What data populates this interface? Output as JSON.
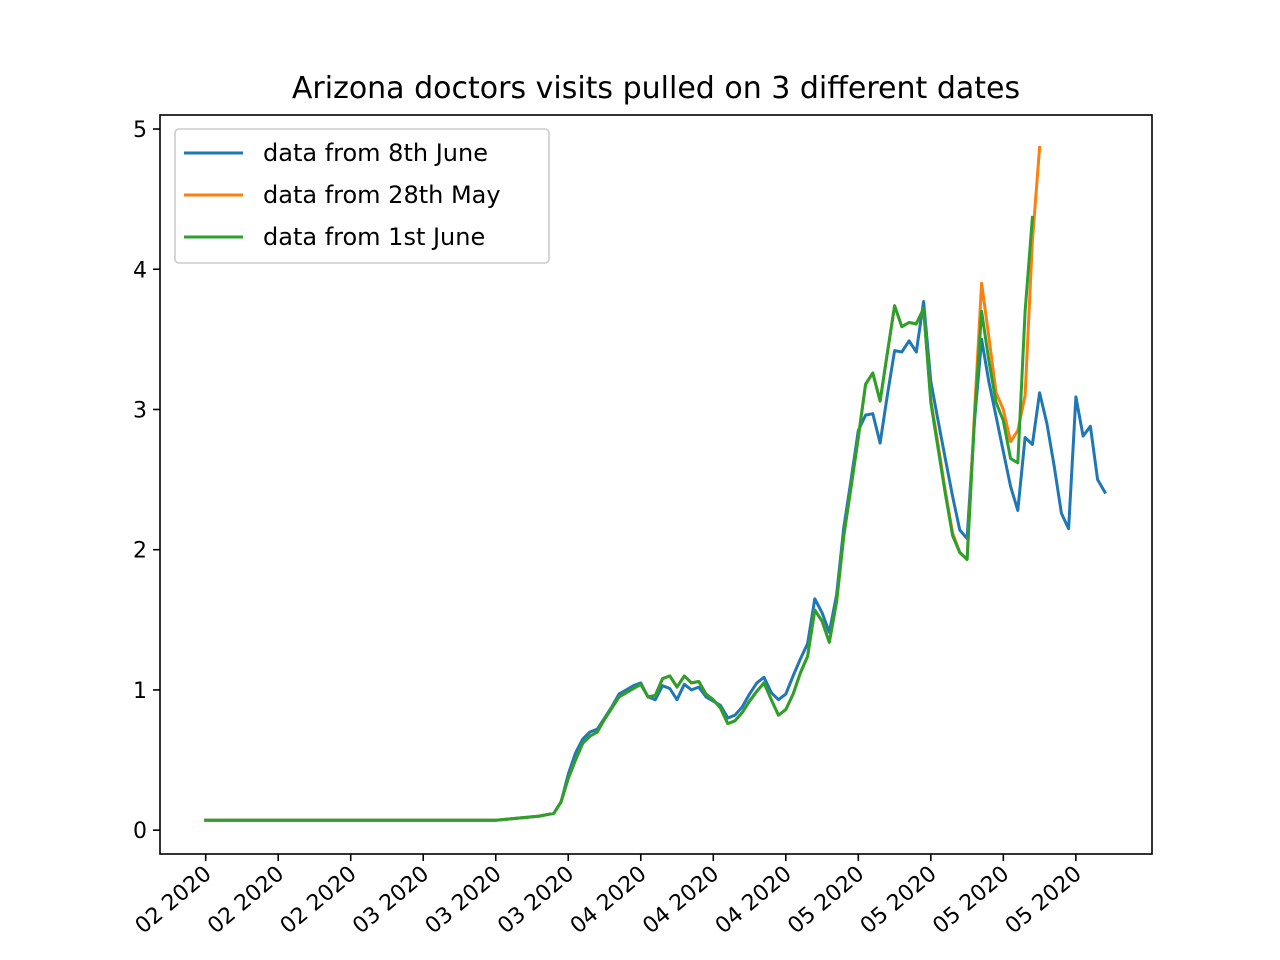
{
  "chart_data": {
    "type": "line",
    "title": "Arizona doctors visits pulled on 3 different dates",
    "xlabel": "",
    "ylabel": "",
    "ylim": [
      -0.17,
      5.1
    ],
    "yticks": [
      0,
      1,
      2,
      3,
      4,
      5
    ],
    "ytick_labels": [
      "0",
      "1",
      "2",
      "3",
      "4",
      "5"
    ],
    "xlim": [
      -6.3,
      130.5
    ],
    "xticks": [
      0,
      10,
      20,
      30,
      40,
      50,
      60,
      70,
      80,
      90,
      100,
      110,
      120
    ],
    "xtick_labels": [
      "02 2020",
      "02 2020",
      "02 2020",
      "03 2020",
      "03 2020",
      "03 2020",
      "04 2020",
      "04 2020",
      "04 2020",
      "05 2020",
      "05 2020",
      "05 2020",
      "05 2020"
    ],
    "xtick_rotation": 40,
    "legend_position": "upper left",
    "series": [
      {
        "name": "data from 8th June",
        "color": "#1f77b4",
        "x": [
          0,
          5,
          10,
          15,
          20,
          25,
          30,
          35,
          40,
          42,
          44,
          46,
          48,
          49,
          50,
          51,
          52,
          53,
          54,
          55,
          56,
          57,
          58,
          59,
          60,
          61,
          62,
          63,
          64,
          65,
          66,
          67,
          68,
          69,
          70,
          71,
          72,
          73,
          74,
          75,
          76,
          77,
          78,
          79,
          80,
          81,
          82,
          83,
          84,
          85,
          86,
          87,
          88,
          89,
          90,
          91,
          92,
          93,
          94,
          95,
          96,
          97,
          98,
          99,
          100,
          101,
          102,
          103,
          104,
          105,
          106,
          107,
          108,
          109,
          110,
          111,
          112,
          113,
          114,
          115,
          116,
          117,
          118,
          119,
          120,
          121,
          122,
          123,
          124
        ],
        "y": [
          0.07,
          0.07,
          0.07,
          0.07,
          0.07,
          0.07,
          0.07,
          0.07,
          0.07,
          0.08,
          0.09,
          0.1,
          0.12,
          0.2,
          0.4,
          0.55,
          0.65,
          0.7,
          0.72,
          0.8,
          0.88,
          0.97,
          1.0,
          1.03,
          1.05,
          0.95,
          0.93,
          1.03,
          1.01,
          0.93,
          1.04,
          1.0,
          1.02,
          0.95,
          0.92,
          0.89,
          0.8,
          0.82,
          0.88,
          0.97,
          1.05,
          1.09,
          0.98,
          0.93,
          0.97,
          1.1,
          1.22,
          1.33,
          1.65,
          1.55,
          1.41,
          1.68,
          2.16,
          2.5,
          2.85,
          2.96,
          2.97,
          2.76,
          3.1,
          3.42,
          3.41,
          3.49,
          3.41,
          3.77,
          3.2,
          2.92,
          2.65,
          2.38,
          2.14,
          2.08,
          2.9,
          3.5,
          3.2,
          2.95,
          2.7,
          2.45,
          2.28,
          2.8,
          2.75,
          3.12,
          2.9,
          2.6,
          2.26,
          2.15,
          3.09,
          2.81,
          2.88,
          2.5,
          2.41
        ]
      },
      {
        "name": "data from 28th May",
        "color": "#ff7f0e",
        "x": [
          0,
          5,
          10,
          15,
          20,
          25,
          30,
          35,
          40,
          42,
          44,
          46,
          48,
          49,
          50,
          51,
          52,
          53,
          54,
          55,
          56,
          57,
          58,
          59,
          60,
          61,
          62,
          63,
          64,
          65,
          66,
          67,
          68,
          69,
          70,
          71,
          72,
          73,
          74,
          75,
          76,
          77,
          78,
          79,
          80,
          81,
          82,
          83,
          84,
          85,
          86,
          87,
          88,
          89,
          90,
          91,
          92,
          93,
          94,
          95,
          96,
          97,
          98,
          99,
          100,
          101,
          102,
          103,
          104,
          105,
          106,
          107,
          108,
          109,
          110,
          111,
          112,
          113,
          114,
          115
        ],
        "y": [
          0.07,
          0.07,
          0.07,
          0.07,
          0.07,
          0.07,
          0.07,
          0.07,
          0.07,
          0.08,
          0.09,
          0.1,
          0.12,
          0.2,
          0.37,
          0.5,
          0.62,
          0.67,
          0.7,
          0.79,
          0.87,
          0.95,
          0.98,
          1.01,
          1.04,
          0.95,
          0.96,
          1.08,
          1.1,
          1.02,
          1.1,
          1.05,
          1.06,
          0.97,
          0.93,
          0.87,
          0.76,
          0.78,
          0.84,
          0.92,
          0.99,
          1.05,
          0.93,
          0.82,
          0.86,
          0.97,
          1.12,
          1.24,
          1.57,
          1.49,
          1.34,
          1.63,
          2.1,
          2.45,
          2.8,
          3.18,
          3.26,
          3.06,
          3.4,
          3.74,
          3.59,
          3.62,
          3.61,
          3.72,
          3.07,
          2.75,
          2.42,
          2.12,
          1.98,
          1.93,
          2.95,
          3.9,
          3.52,
          3.12,
          3.0,
          2.77,
          2.85,
          3.1,
          4.2,
          4.87
        ]
      },
      {
        "name": "data from 1st June",
        "color": "#2ca02c",
        "x": [
          0,
          5,
          10,
          15,
          20,
          25,
          30,
          35,
          40,
          42,
          44,
          46,
          48,
          49,
          50,
          51,
          52,
          53,
          54,
          55,
          56,
          57,
          58,
          59,
          60,
          61,
          62,
          63,
          64,
          65,
          66,
          67,
          68,
          69,
          70,
          71,
          72,
          73,
          74,
          75,
          76,
          77,
          78,
          79,
          80,
          81,
          82,
          83,
          84,
          85,
          86,
          87,
          88,
          89,
          90,
          91,
          92,
          93,
          94,
          95,
          96,
          97,
          98,
          99,
          100,
          101,
          102,
          103,
          104,
          105,
          106,
          107,
          108,
          109,
          110,
          111,
          112,
          113,
          114
        ],
        "y": [
          0.07,
          0.07,
          0.07,
          0.07,
          0.07,
          0.07,
          0.07,
          0.07,
          0.07,
          0.08,
          0.09,
          0.1,
          0.12,
          0.2,
          0.37,
          0.5,
          0.62,
          0.67,
          0.7,
          0.79,
          0.87,
          0.95,
          0.98,
          1.01,
          1.04,
          0.95,
          0.96,
          1.08,
          1.1,
          1.02,
          1.1,
          1.05,
          1.06,
          0.97,
          0.93,
          0.87,
          0.76,
          0.78,
          0.84,
          0.92,
          0.99,
          1.05,
          0.93,
          0.82,
          0.86,
          0.97,
          1.12,
          1.24,
          1.57,
          1.49,
          1.34,
          1.63,
          2.1,
          2.45,
          2.8,
          3.18,
          3.26,
          3.06,
          3.4,
          3.74,
          3.59,
          3.62,
          3.61,
          3.72,
          3.05,
          2.72,
          2.4,
          2.1,
          1.98,
          1.93,
          2.9,
          3.7,
          3.35,
          3.05,
          2.92,
          2.65,
          2.62,
          3.7,
          4.37
        ]
      }
    ]
  }
}
